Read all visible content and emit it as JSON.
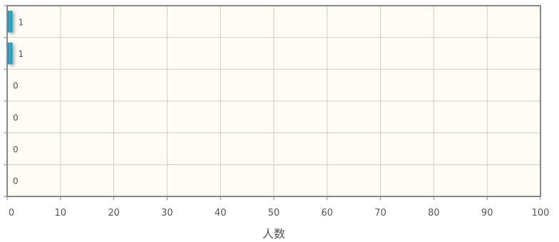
{
  "chart_data": {
    "type": "bar",
    "orientation": "horizontal",
    "values": [
      1,
      1,
      0,
      0,
      0,
      0
    ],
    "xlim": [
      0,
      100
    ],
    "xticks": [
      0,
      10,
      20,
      30,
      40,
      50,
      60,
      70,
      80,
      90,
      100
    ],
    "xlabel": "人数",
    "grid": true,
    "data_labels": true,
    "colors": {
      "bar": "#2aa7c7",
      "bar_dark": "#1a7f9a",
      "plot_bg": "#fffcf5",
      "grid": "#cccccc",
      "axis": "#888888"
    }
  }
}
